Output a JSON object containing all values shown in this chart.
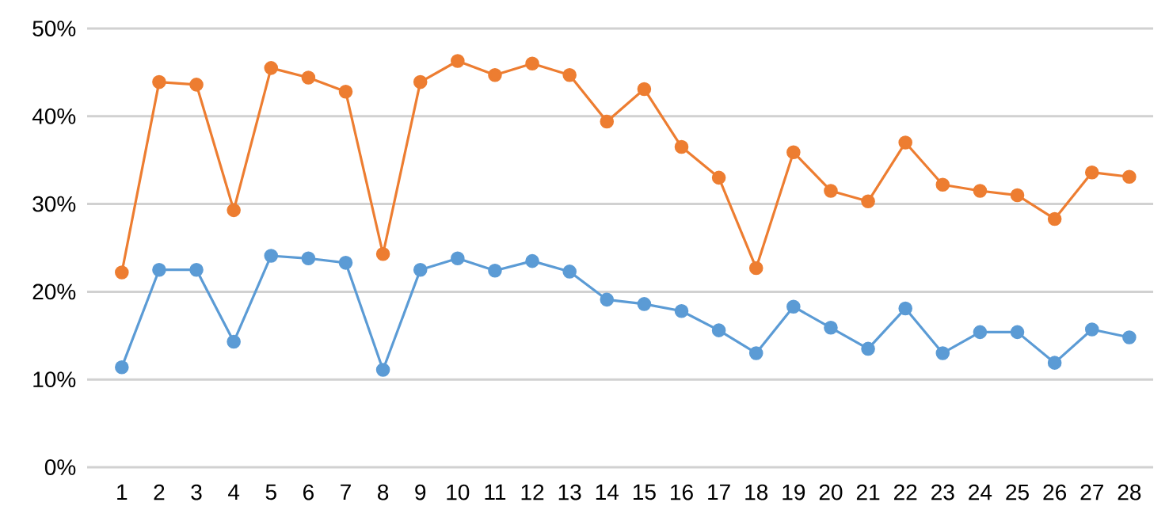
{
  "chart_data": {
    "type": "line",
    "categories": [
      "1",
      "2",
      "3",
      "4",
      "5",
      "6",
      "7",
      "8",
      "9",
      "10",
      "11",
      "12",
      "13",
      "14",
      "15",
      "16",
      "17",
      "18",
      "19",
      "20",
      "21",
      "22",
      "23",
      "24",
      "25",
      "26",
      "27",
      "28"
    ],
    "series": [
      {
        "color": "#ed7d31",
        "values": [
          22.2,
          43.9,
          43.6,
          29.3,
          45.5,
          44.4,
          42.8,
          24.3,
          43.9,
          46.3,
          44.7,
          46.0,
          44.7,
          39.4,
          43.1,
          36.5,
          33.0,
          22.7,
          35.9,
          31.5,
          30.3,
          37.0,
          32.2,
          31.5,
          31.0,
          28.3,
          33.6,
          33.1
        ]
      },
      {
        "color": "#5b9bd5",
        "values": [
          11.4,
          22.5,
          22.5,
          14.3,
          24.1,
          23.8,
          23.3,
          11.1,
          22.5,
          23.8,
          22.4,
          23.5,
          22.3,
          19.1,
          18.6,
          17.8,
          15.6,
          13.0,
          18.3,
          15.9,
          13.5,
          18.1,
          13.0,
          15.4,
          15.4,
          11.9,
          15.7,
          14.8
        ]
      }
    ],
    "ylim": [
      0,
      50
    ],
    "yticks": [
      {
        "value": 0,
        "label": "0%"
      },
      {
        "value": 10,
        "label": "10%"
      },
      {
        "value": 20,
        "label": "20%"
      },
      {
        "value": 30,
        "label": "30%"
      },
      {
        "value": 40,
        "label": "40%"
      },
      {
        "value": 50,
        "label": "50%"
      }
    ],
    "grid": "y",
    "marker": "circle",
    "line_style": "solid"
  }
}
